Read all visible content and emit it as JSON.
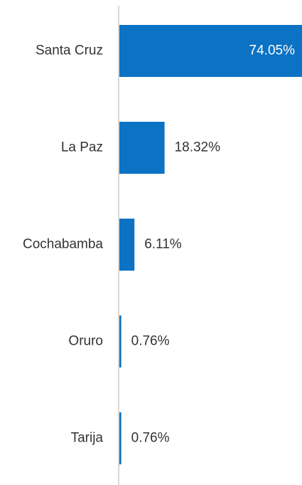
{
  "chart_data": {
    "type": "hbar",
    "categories": [
      "Santa Cruz",
      "La Paz",
      "Cochabamba",
      "Oruro",
      "Tarija"
    ],
    "values": [
      74.05,
      18.32,
      6.11,
      0.76,
      0.76
    ],
    "value_labels": [
      "74.05%",
      "18.32%",
      "6.11%",
      "0.76%",
      "0.76%"
    ],
    "color": "#0b72c4",
    "xlim": [
      0,
      74.05
    ]
  }
}
